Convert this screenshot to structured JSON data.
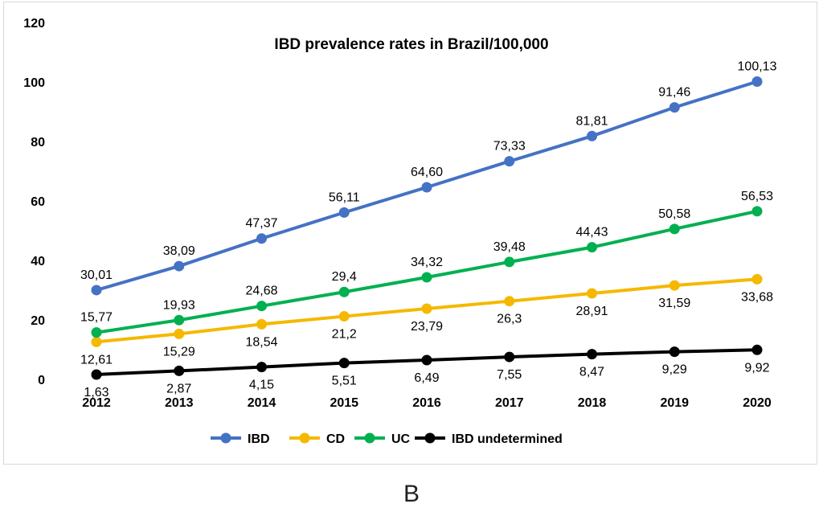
{
  "panel_label": "B",
  "chart_data": {
    "type": "line",
    "title": "IBD prevalence rates in Brazil/100,000",
    "xlabel": "",
    "ylabel": "",
    "categories": [
      "2012",
      "2013",
      "2014",
      "2015",
      "2016",
      "2017",
      "2018",
      "2019",
      "2020"
    ],
    "ylim": [
      0,
      120
    ],
    "yticks": [
      0,
      20,
      40,
      60,
      80,
      100,
      120
    ],
    "grid": false,
    "legend_position": "bottom",
    "series": [
      {
        "name": "IBD",
        "color": "#4472c4",
        "label_position": "above",
        "values": [
          30.01,
          38.09,
          47.37,
          56.11,
          64.6,
          73.33,
          81.81,
          91.46,
          100.13
        ],
        "labels": [
          "30,01",
          "38,09",
          "47,37",
          "56,11",
          "64,60",
          "73,33",
          "81,81",
          "91,46",
          "100,13"
        ]
      },
      {
        "name": "CD",
        "color": "#f5b800",
        "label_position": "below",
        "values": [
          12.61,
          15.29,
          18.54,
          21.2,
          23.79,
          26.3,
          28.91,
          31.59,
          33.68
        ],
        "labels": [
          "12,61",
          "15,29",
          "18,54",
          "21,2",
          "23,79",
          "26,3",
          "28,91",
          "31,59",
          "33,68"
        ]
      },
      {
        "name": "UC",
        "color": "#00b050",
        "label_position": "above",
        "values": [
          15.77,
          19.93,
          24.68,
          29.4,
          34.32,
          39.48,
          44.43,
          50.58,
          56.53
        ],
        "labels": [
          "15,77",
          "19,93",
          "24,68",
          "29,4",
          "34,32",
          "39,48",
          "44,43",
          "50,58",
          "56,53"
        ]
      },
      {
        "name": "IBD undetermined",
        "color": "#000000",
        "label_position": "below",
        "values": [
          1.63,
          2.87,
          4.15,
          5.51,
          6.49,
          7.55,
          8.47,
          9.29,
          9.92
        ],
        "labels": [
          "1,63",
          "2,87",
          "4,15",
          "5,51",
          "6,49",
          "7,55",
          "8,47",
          "9,29",
          "9,92"
        ]
      }
    ]
  }
}
